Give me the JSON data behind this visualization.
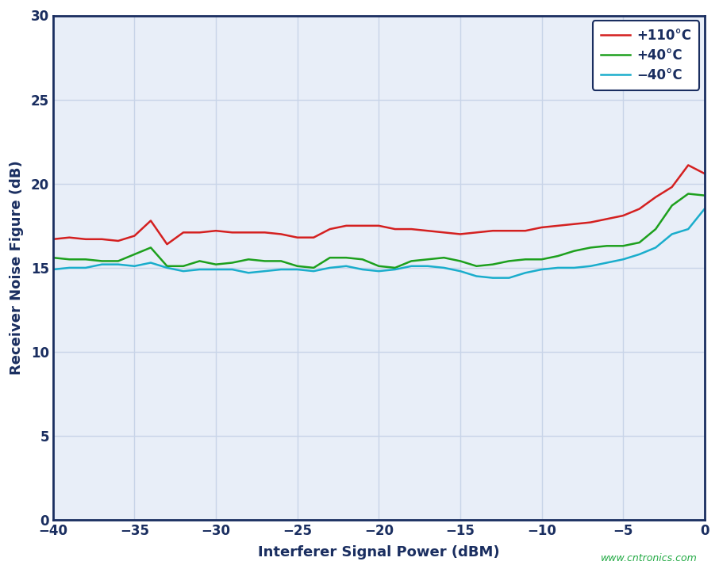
{
  "x_values": [
    -40,
    -39,
    -38,
    -37,
    -36,
    -35,
    -34,
    -33,
    -32,
    -31,
    -30,
    -29,
    -28,
    -27,
    -26,
    -25,
    -24,
    -23,
    -22,
    -21,
    -20,
    -19,
    -18,
    -17,
    -16,
    -15,
    -14,
    -13,
    -12,
    -11,
    -10,
    -9,
    -8,
    -7,
    -6,
    -5,
    -4,
    -3,
    -2,
    -1,
    0
  ],
  "red_y": [
    16.7,
    16.8,
    16.7,
    16.7,
    16.6,
    16.9,
    17.8,
    16.4,
    17.1,
    17.1,
    17.2,
    17.1,
    17.1,
    17.1,
    17.0,
    16.8,
    16.8,
    17.3,
    17.5,
    17.5,
    17.5,
    17.3,
    17.3,
    17.2,
    17.1,
    17.0,
    17.1,
    17.2,
    17.2,
    17.2,
    17.4,
    17.5,
    17.6,
    17.7,
    17.9,
    18.1,
    18.5,
    19.2,
    19.8,
    21.1,
    20.6
  ],
  "green_y": [
    15.6,
    15.5,
    15.5,
    15.4,
    15.4,
    15.8,
    16.2,
    15.1,
    15.1,
    15.4,
    15.2,
    15.3,
    15.5,
    15.4,
    15.4,
    15.1,
    15.0,
    15.6,
    15.6,
    15.5,
    15.1,
    15.0,
    15.4,
    15.5,
    15.6,
    15.4,
    15.1,
    15.2,
    15.4,
    15.5,
    15.5,
    15.7,
    16.0,
    16.2,
    16.3,
    16.3,
    16.5,
    17.3,
    18.7,
    19.4,
    19.3
  ],
  "cyan_y": [
    14.9,
    15.0,
    15.0,
    15.2,
    15.2,
    15.1,
    15.3,
    15.0,
    14.8,
    14.9,
    14.9,
    14.9,
    14.7,
    14.8,
    14.9,
    14.9,
    14.8,
    15.0,
    15.1,
    14.9,
    14.8,
    14.9,
    15.1,
    15.1,
    15.0,
    14.8,
    14.5,
    14.4,
    14.4,
    14.7,
    14.9,
    15.0,
    15.0,
    15.1,
    15.3,
    15.5,
    15.8,
    16.2,
    17.0,
    17.3,
    18.5
  ],
  "red_color": "#d42020",
  "green_color": "#1da01d",
  "cyan_color": "#1aadcc",
  "legend_labels": [
    "+110°C",
    "+40°C",
    "−40°C"
  ],
  "xlabel": "Interferer Signal Power (dBM)",
  "ylabel": "Receiver Noise Figure (dB)",
  "xlim": [
    -40,
    0
  ],
  "ylim": [
    0,
    30
  ],
  "xticks": [
    -40,
    -35,
    -30,
    -25,
    -20,
    -15,
    -10,
    -5,
    0
  ],
  "yticks": [
    0,
    5,
    10,
    15,
    20,
    25,
    30
  ],
  "grid_color": "#c8d4e8",
  "plot_bg_color": "#e8eef8",
  "fig_bg_color": "#ffffff",
  "border_color": "#1a2e60",
  "tick_label_color": "#1a2e60",
  "axis_label_color": "#1a2e60",
  "watermark": "www.cntronics.com",
  "watermark_color": "#22aa44",
  "linewidth": 1.8
}
